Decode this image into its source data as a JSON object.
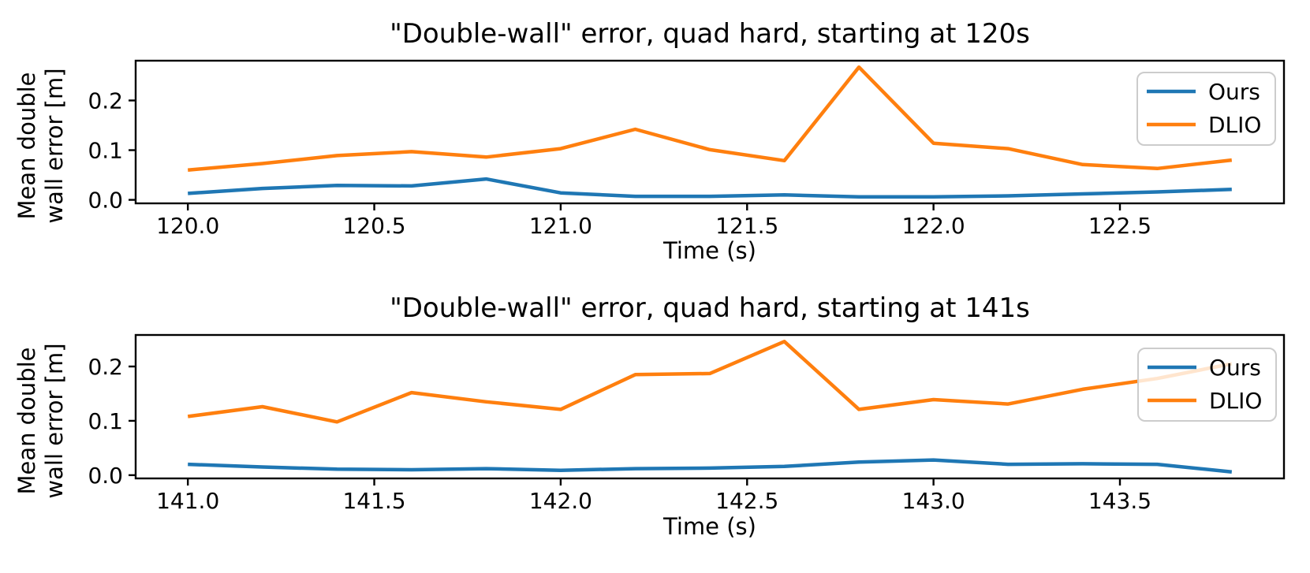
{
  "figure": {
    "background": "#ffffff",
    "frame_color": "#000000",
    "legend_border_color": "#cccccc"
  },
  "chart_data": [
    {
      "type": "line",
      "title": "\"Double-wall\" error, quad hard, starting at 120s",
      "xlabel": "Time (s)",
      "ylabel": "Mean double wall error [m]",
      "ylabel_lines": [
        "Mean double",
        "wall error [m]"
      ],
      "x": [
        120.0,
        120.2,
        120.4,
        120.6,
        120.8,
        121.0,
        121.2,
        121.4,
        121.6,
        121.8,
        122.0,
        122.2,
        122.4,
        122.6,
        122.8
      ],
      "series": [
        {
          "name": "Ours",
          "color": "#1f77b4",
          "values": [
            0.013,
            0.023,
            0.029,
            0.028,
            0.042,
            0.014,
            0.007,
            0.007,
            0.01,
            0.006,
            0.006,
            0.008,
            0.012,
            0.016,
            0.021
          ]
        },
        {
          "name": "DLIO",
          "color": "#ff7f0e",
          "values": [
            0.06,
            0.073,
            0.089,
            0.097,
            0.086,
            0.103,
            0.142,
            0.101,
            0.079,
            0.267,
            0.114,
            0.103,
            0.071,
            0.063,
            0.08
          ]
        }
      ],
      "xticks": {
        "values": [
          120.0,
          120.5,
          121.0,
          121.5,
          122.0,
          122.5
        ],
        "labels": [
          "120.0",
          "120.5",
          "121.0",
          "121.5",
          "122.0",
          "122.5"
        ]
      },
      "yticks": {
        "values": [
          0.0,
          0.1,
          0.2
        ],
        "labels": [
          "0.0",
          "0.1",
          "0.2"
        ]
      },
      "legend": {
        "position": "upper right",
        "labels": [
          "Ours",
          "DLIO"
        ]
      },
      "grid": false
    },
    {
      "type": "line",
      "title": "\"Double-wall\" error, quad hard, starting at 141s",
      "xlabel": "Time (s)",
      "ylabel": "Mean double wall error [m]",
      "ylabel_lines": [
        "Mean double",
        "wall error [m]"
      ],
      "x": [
        141.0,
        141.2,
        141.4,
        141.6,
        141.8,
        142.0,
        142.2,
        142.4,
        142.6,
        142.8,
        143.0,
        143.2,
        143.4,
        143.6,
        143.8
      ],
      "series": [
        {
          "name": "Ours",
          "color": "#1f77b4",
          "values": [
            0.02,
            0.015,
            0.011,
            0.01,
            0.012,
            0.009,
            0.012,
            0.013,
            0.016,
            0.024,
            0.028,
            0.02,
            0.021,
            0.02,
            0.006
          ]
        },
        {
          "name": "DLIO",
          "color": "#ff7f0e",
          "values": [
            0.108,
            0.126,
            0.098,
            0.152,
            0.135,
            0.121,
            0.185,
            0.187,
            0.246,
            0.121,
            0.139,
            0.131,
            0.158,
            0.178,
            0.205
          ]
        }
      ],
      "xticks": {
        "values": [
          141.0,
          141.5,
          142.0,
          142.5,
          143.0,
          143.5
        ],
        "labels": [
          "141.0",
          "141.5",
          "142.0",
          "142.5",
          "143.0",
          "143.5"
        ]
      },
      "yticks": {
        "values": [
          0.0,
          0.1,
          0.2
        ],
        "labels": [
          "0.0",
          "0.1",
          "0.2"
        ]
      },
      "legend": {
        "position": "upper right",
        "labels": [
          "Ours",
          "DLIO"
        ]
      },
      "grid": false
    }
  ]
}
